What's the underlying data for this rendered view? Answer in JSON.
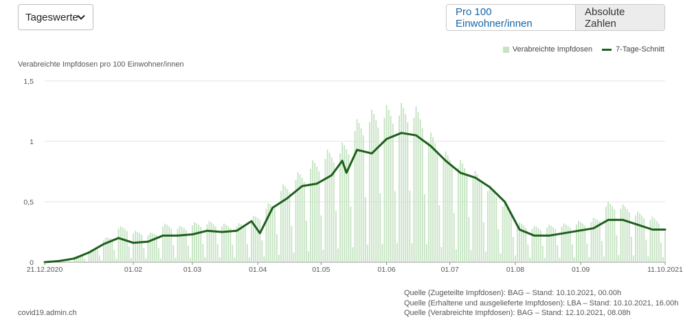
{
  "controls": {
    "select_value": "Tageswerte",
    "toggle_active": "Pro 100 Einwohner/innen",
    "toggle_inactive": "Absolute Zahlen"
  },
  "legend": {
    "bars_label": "Verabreichte Impfdosen",
    "line_label": "7-Tage-Schnitt"
  },
  "footer": {
    "site": "covid19.admin.ch",
    "sources": [
      "Quelle (Zugeteilte Impfdosen): BAG – Stand: 10.10.2021, 00.00h",
      "Quelle (Erhaltene und ausgelieferte Impfdosen): LBA – Stand: 10.10.2021, 16.00h",
      "Quelle (Verabreichte Impfdosen): BAG – Stand: 12.10.2021, 08.08h"
    ]
  },
  "colors": {
    "bars": "#c6e4c3",
    "line": "#1d5f1b",
    "grid": "#e3e3e3",
    "axis": "#555555"
  },
  "chart_data": {
    "type": "bar",
    "ylabel": "Verabreichte Impfdosen pro 100 Einwohner/innen",
    "ylim": [
      0,
      1.5
    ],
    "yticks": [
      {
        "value": 0,
        "label": "0"
      },
      {
        "value": 0.5,
        "label": "0,5"
      },
      {
        "value": 1,
        "label": "1"
      },
      {
        "value": 1.5,
        "label": "1,5"
      }
    ],
    "x_start": "2020-12-21",
    "x_end": "2021-10-11",
    "xticks": [
      {
        "date": "2020-12-21",
        "label": "21.12.2020"
      },
      {
        "date": "2021-02-01",
        "label": "01.02"
      },
      {
        "date": "2021-03-01",
        "label": "01.03"
      },
      {
        "date": "2021-04-01",
        "label": "01.04"
      },
      {
        "date": "2021-05-01",
        "label": "01.05"
      },
      {
        "date": "2021-06-01",
        "label": "01.06"
      },
      {
        "date": "2021-07-01",
        "label": "01.07"
      },
      {
        "date": "2021-08-01",
        "label": "01.08"
      },
      {
        "date": "2021-09-01",
        "label": "01.09"
      },
      {
        "date": "2021-10-11",
        "label": "11.10.2021"
      }
    ],
    "series": [
      {
        "name": "Verabreichte Impfdosen",
        "kind": "daily_bars",
        "weekly_peaks": [
          {
            "date": "2020-12-21",
            "value": 0.01
          },
          {
            "date": "2020-12-28",
            "value": 0.02
          },
          {
            "date": "2021-01-04",
            "value": 0.05
          },
          {
            "date": "2021-01-11",
            "value": 0.1
          },
          {
            "date": "2021-01-18",
            "value": 0.2
          },
          {
            "date": "2021-01-25",
            "value": 0.3
          },
          {
            "date": "2021-02-01",
            "value": 0.26
          },
          {
            "date": "2021-02-08",
            "value": 0.24
          },
          {
            "date": "2021-02-15",
            "value": 0.32
          },
          {
            "date": "2021-02-22",
            "value": 0.3
          },
          {
            "date": "2021-03-01",
            "value": 0.33
          },
          {
            "date": "2021-03-08",
            "value": 0.34
          },
          {
            "date": "2021-03-15",
            "value": 0.32
          },
          {
            "date": "2021-03-22",
            "value": 0.32
          },
          {
            "date": "2021-03-29",
            "value": 0.38
          },
          {
            "date": "2021-04-05",
            "value": 0.48
          },
          {
            "date": "2021-04-12",
            "value": 0.64
          },
          {
            "date": "2021-04-19",
            "value": 0.74
          },
          {
            "date": "2021-04-26",
            "value": 0.84
          },
          {
            "date": "2021-05-03",
            "value": 0.93
          },
          {
            "date": "2021-05-10",
            "value": 0.98
          },
          {
            "date": "2021-05-17",
            "value": 1.18
          },
          {
            "date": "2021-05-24",
            "value": 1.26
          },
          {
            "date": "2021-05-31",
            "value": 1.3
          },
          {
            "date": "2021-06-07",
            "value": 1.32
          },
          {
            "date": "2021-06-14",
            "value": 1.3
          },
          {
            "date": "2021-06-21",
            "value": 1.08
          },
          {
            "date": "2021-06-28",
            "value": 0.92
          },
          {
            "date": "2021-07-05",
            "value": 0.85
          },
          {
            "date": "2021-07-12",
            "value": 0.76
          },
          {
            "date": "2021-07-19",
            "value": 0.64
          },
          {
            "date": "2021-07-26",
            "value": 0.5
          },
          {
            "date": "2021-08-02",
            "value": 0.33
          },
          {
            "date": "2021-08-09",
            "value": 0.3
          },
          {
            "date": "2021-08-16",
            "value": 0.31
          },
          {
            "date": "2021-08-23",
            "value": 0.32
          },
          {
            "date": "2021-08-30",
            "value": 0.34
          },
          {
            "date": "2021-09-06",
            "value": 0.36
          },
          {
            "date": "2021-09-13",
            "value": 0.5
          },
          {
            "date": "2021-09-20",
            "value": 0.48
          },
          {
            "date": "2021-09-27",
            "value": 0.42
          },
          {
            "date": "2021-10-04",
            "value": 0.38
          },
          {
            "date": "2021-10-11",
            "value": 0.28
          }
        ]
      },
      {
        "name": "7-Tage-Schnitt",
        "kind": "line",
        "points": [
          {
            "date": "2020-12-21",
            "value": 0.0
          },
          {
            "date": "2020-12-28",
            "value": 0.01
          },
          {
            "date": "2021-01-04",
            "value": 0.03
          },
          {
            "date": "2021-01-11",
            "value": 0.08
          },
          {
            "date": "2021-01-18",
            "value": 0.15
          },
          {
            "date": "2021-01-25",
            "value": 0.2
          },
          {
            "date": "2021-02-01",
            "value": 0.16
          },
          {
            "date": "2021-02-08",
            "value": 0.17
          },
          {
            "date": "2021-02-15",
            "value": 0.22
          },
          {
            "date": "2021-02-22",
            "value": 0.22
          },
          {
            "date": "2021-03-01",
            "value": 0.23
          },
          {
            "date": "2021-03-08",
            "value": 0.26
          },
          {
            "date": "2021-03-15",
            "value": 0.25
          },
          {
            "date": "2021-03-22",
            "value": 0.26
          },
          {
            "date": "2021-03-29",
            "value": 0.34
          },
          {
            "date": "2021-04-02",
            "value": 0.24
          },
          {
            "date": "2021-04-08",
            "value": 0.45
          },
          {
            "date": "2021-04-15",
            "value": 0.53
          },
          {
            "date": "2021-04-22",
            "value": 0.63
          },
          {
            "date": "2021-04-29",
            "value": 0.65
          },
          {
            "date": "2021-05-06",
            "value": 0.72
          },
          {
            "date": "2021-05-11",
            "value": 0.84
          },
          {
            "date": "2021-05-13",
            "value": 0.74
          },
          {
            "date": "2021-05-18",
            "value": 0.93
          },
          {
            "date": "2021-05-25",
            "value": 0.9
          },
          {
            "date": "2021-06-01",
            "value": 1.02
          },
          {
            "date": "2021-06-08",
            "value": 1.07
          },
          {
            "date": "2021-06-15",
            "value": 1.05
          },
          {
            "date": "2021-06-22",
            "value": 0.96
          },
          {
            "date": "2021-06-29",
            "value": 0.84
          },
          {
            "date": "2021-07-06",
            "value": 0.74
          },
          {
            "date": "2021-07-13",
            "value": 0.7
          },
          {
            "date": "2021-07-20",
            "value": 0.62
          },
          {
            "date": "2021-07-27",
            "value": 0.5
          },
          {
            "date": "2021-08-03",
            "value": 0.27
          },
          {
            "date": "2021-08-10",
            "value": 0.22
          },
          {
            "date": "2021-08-17",
            "value": 0.22
          },
          {
            "date": "2021-08-24",
            "value": 0.24
          },
          {
            "date": "2021-08-31",
            "value": 0.26
          },
          {
            "date": "2021-09-07",
            "value": 0.28
          },
          {
            "date": "2021-09-14",
            "value": 0.35
          },
          {
            "date": "2021-09-21",
            "value": 0.35
          },
          {
            "date": "2021-09-28",
            "value": 0.31
          },
          {
            "date": "2021-10-05",
            "value": 0.27
          },
          {
            "date": "2021-10-11",
            "value": 0.27
          }
        ]
      }
    ]
  }
}
